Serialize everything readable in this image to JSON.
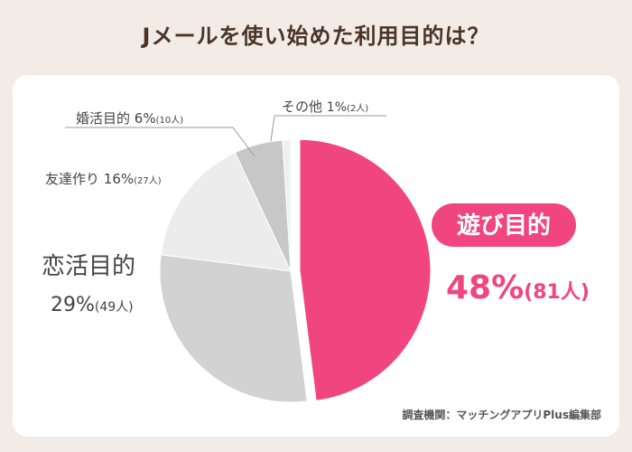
{
  "title": "Jメールを使い始めた利用目的は？",
  "source_note": "調査機関：マッチングアプリPlus編集部",
  "colors": {
    "background": "#f2ebe6",
    "card": "#ffffff",
    "title": "#4a3426",
    "accent": "#f1457f",
    "text": "#444444",
    "leader_line": "#999999"
  },
  "chart_data": {
    "type": "pie",
    "unit": "%",
    "slices": [
      {
        "label": "遊び目的",
        "value": 48,
        "count": "81人",
        "pct_text": "48%",
        "count_text": "(81人)",
        "color": "#f1457f",
        "highlight": true
      },
      {
        "label": "恋活目的",
        "value": 29,
        "count": "49人",
        "pct_text": "29%",
        "count_text": "(49人)",
        "color": "#d2d2d2"
      },
      {
        "label": "友達作り",
        "value": 16,
        "count": "27人",
        "pct_text": "16%",
        "count_text": "(27人)",
        "color": "#ececec"
      },
      {
        "label": "婚活目的",
        "value": 6,
        "count": "10人",
        "pct_text": "6%",
        "count_text": "(10人)",
        "color": "#c7c7c7"
      },
      {
        "label": "その他",
        "value": 1,
        "count": "2人",
        "pct_text": "1%",
        "count_text": "(2人)",
        "color": "#efefef"
      }
    ]
  }
}
